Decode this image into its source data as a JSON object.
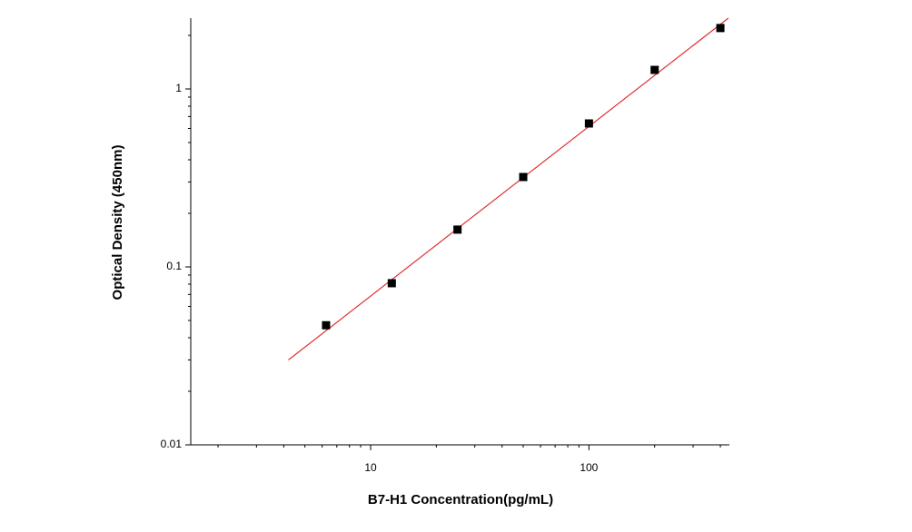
{
  "chart_data": {
    "type": "scatter",
    "x_label": "B7-H1  Concentration(pg/mL)",
    "y_label": "Optical Density (450nm)",
    "x": [
      6.25,
      12.5,
      25,
      50,
      100,
      200,
      400
    ],
    "values": [
      0.047,
      0.081,
      0.162,
      0.32,
      0.64,
      1.28,
      2.2
    ],
    "color": "#000000",
    "fit": {
      "x": [
        4.2,
        435
      ],
      "values": [
        0.03,
        2.5
      ],
      "color": "#e03030"
    },
    "xlog": true,
    "ylog": true,
    "xlim": [
      1.5,
      440
    ],
    "ylim": [
      0.01,
      2.5
    ],
    "xticks": [
      10,
      100
    ],
    "yticks": [
      0.01,
      0.1,
      1
    ],
    "xminor": [
      2,
      3,
      4,
      5,
      6,
      7,
      8,
      9,
      20,
      30,
      40,
      50,
      60,
      70,
      80,
      90,
      200,
      300,
      400
    ],
    "yminor": [
      0.02,
      0.03,
      0.04,
      0.05,
      0.06,
      0.07,
      0.08,
      0.09,
      0.2,
      0.3,
      0.4,
      0.5,
      0.6,
      0.7,
      0.8,
      0.9,
      2
    ]
  }
}
